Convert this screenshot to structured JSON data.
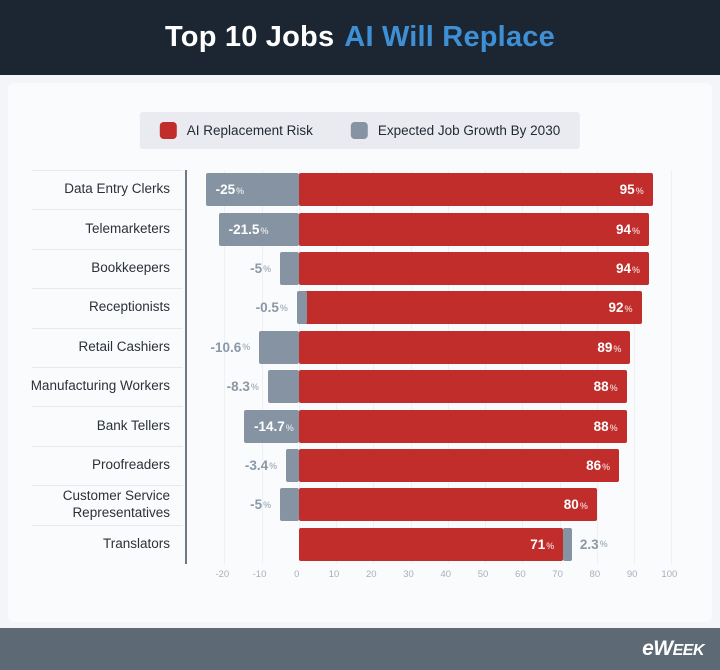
{
  "header": {
    "title_prefix": "Top 10 Jobs",
    "title_highlight": "AI Will Replace"
  },
  "legend": {
    "items": [
      {
        "label": "AI Replacement Risk",
        "color": "#c02d2b"
      },
      {
        "label": "Expected Job Growth By 2030",
        "color": "#8593a2"
      }
    ]
  },
  "footer": {
    "logo_e": "e",
    "logo_w": "W",
    "logo_eek": "EEK"
  },
  "colors": {
    "header_bg": "#1c2632",
    "title_highlight": "#3e8fd4",
    "risk_bar": "#c02d2b",
    "growth_bar": "#8593a2",
    "footer_bg": "#5d6a76"
  },
  "chart_data": {
    "type": "bar",
    "orientation": "horizontal",
    "title": "Top 10 Jobs AI Will Replace",
    "unit": "%",
    "categories": [
      "Data Entry Clerks",
      "Telemarketers",
      "Bookkeepers",
      "Receptionists",
      "Retail Cashiers",
      "Manufacturing Workers",
      "Bank Tellers",
      "Proofreaders",
      "Customer Service Representatives",
      "Translators"
    ],
    "series": [
      {
        "name": "AI Replacement Risk",
        "color": "#c02d2b",
        "values": [
          95,
          94,
          94,
          92,
          89,
          88,
          88,
          86,
          80,
          71
        ],
        "labels": [
          "95",
          "94",
          "94",
          "92",
          "89",
          "88",
          "88",
          "86",
          "80",
          "71"
        ]
      },
      {
        "name": "Expected Job Growth By 2030",
        "color": "#8593a2",
        "values": [
          -25,
          -21.5,
          -5,
          -0.5,
          -10.6,
          -8.3,
          -14.7,
          -3.4,
          -5,
          2.3
        ],
        "labels": [
          "-25",
          "-21.5",
          "-5",
          "-0.5",
          "-10.6",
          "-8.3",
          "-14.7",
          "-3.4",
          "-5",
          "2.3"
        ]
      }
    ],
    "xlim": [
      -30,
      105
    ],
    "x_ticks": [
      -20,
      -10,
      0,
      10,
      20,
      30,
      40,
      50,
      60,
      70,
      80,
      90,
      100
    ],
    "grid": true,
    "legend_position": "top"
  }
}
